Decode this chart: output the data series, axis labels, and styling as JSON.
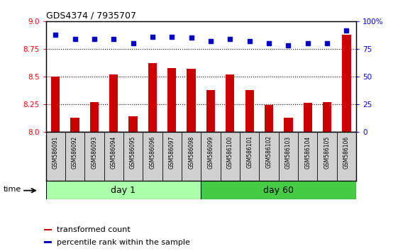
{
  "title": "GDS4374 / 7935707",
  "categories": [
    "GSM586091",
    "GSM586092",
    "GSM586093",
    "GSM586094",
    "GSM586095",
    "GSM586096",
    "GSM586097",
    "GSM586098",
    "GSM586099",
    "GSM586100",
    "GSM586101",
    "GSM586102",
    "GSM586103",
    "GSM586104",
    "GSM586105",
    "GSM586106"
  ],
  "bar_values": [
    8.5,
    8.13,
    8.27,
    8.52,
    8.14,
    8.62,
    8.58,
    8.57,
    8.38,
    8.52,
    8.38,
    8.24,
    8.13,
    8.26,
    8.27,
    8.88
  ],
  "dot_values": [
    88,
    84,
    84,
    84,
    80,
    86,
    86,
    85,
    82,
    84,
    82,
    80,
    78,
    80,
    80,
    92
  ],
  "groups": [
    {
      "label": "day 1",
      "start": 0,
      "end": 8,
      "color": "#90EE90"
    },
    {
      "label": "day 60",
      "start": 8,
      "end": 16,
      "color": "#3CB371"
    }
  ],
  "ylim_left": [
    8.0,
    9.0
  ],
  "ylim_right": [
    0,
    100
  ],
  "yticks_left": [
    8.0,
    8.25,
    8.5,
    8.75,
    9.0
  ],
  "yticks_right": [
    0,
    25,
    50,
    75,
    100
  ],
  "ytick_labels_right": [
    "0",
    "25",
    "50",
    "75",
    "100%"
  ],
  "bar_color": "#CC0000",
  "dot_color": "#0000CC",
  "grid_lines": [
    8.25,
    8.5,
    8.75
  ],
  "legend_items": [
    {
      "label": "transformed count",
      "color": "#CC0000"
    },
    {
      "label": "percentile rank within the sample",
      "color": "#0000CC"
    }
  ],
  "time_label": "time",
  "plot_bg": "#ffffff",
  "xtick_bg": "#d0d0d0",
  "day1_color": "#aaffaa",
  "day60_color": "#44cc44"
}
